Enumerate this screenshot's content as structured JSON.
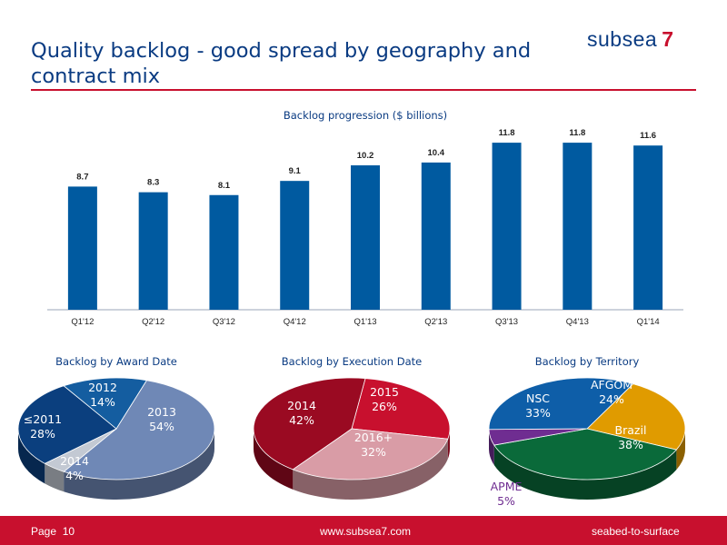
{
  "slide": {
    "title": "Quality backlog - good spread by geography and contract mix",
    "logo_name": "subsea",
    "logo_number": "7",
    "footer": {
      "page_label": "Page",
      "page_number": "10",
      "url": "www.subsea7.com",
      "tagline": "seabed-to-surface"
    }
  },
  "colors": {
    "bar": "#005aa0",
    "accent_red": "#c8102e",
    "title_blue": "#0a3b82"
  },
  "chart_data": [
    {
      "type": "bar",
      "title": "Backlog progression ($ billions)",
      "categories": [
        "Q1'12",
        "Q2'12",
        "Q3'12",
        "Q4'12",
        "Q1'13",
        "Q2'13",
        "Q3'13",
        "Q4'13",
        "Q1'14"
      ],
      "values": [
        8.7,
        8.3,
        8.1,
        9.1,
        10.2,
        10.4,
        11.8,
        11.8,
        11.6
      ],
      "data_labels": [
        "8.7",
        "8.3",
        "8.1",
        "9.1",
        "10.2",
        "10.4",
        "11.8",
        "11.8",
        "11.6"
      ],
      "ylim": [
        0,
        12.5
      ],
      "grid": false
    },
    {
      "type": "pie",
      "title": "Backlog by Award Date",
      "slices": [
        {
          "label": "2013",
          "value": 54,
          "text": "54%",
          "color": "#6f88b6"
        },
        {
          "label": "2014",
          "value": 4,
          "text": "4%",
          "color": "#c3c9d3"
        },
        {
          "label": "≤2011",
          "value": 28,
          "text": "28%",
          "color": "#0b3f7e"
        },
        {
          "label": "2012",
          "value": 14,
          "text": "14%",
          "color": "#145da0"
        }
      ]
    },
    {
      "type": "pie",
      "title": "Backlog by Execution Date",
      "slices": [
        {
          "label": "2015",
          "value": 26,
          "text": "26%",
          "color": "#c8102e"
        },
        {
          "label": "2016+",
          "value": 32,
          "text": "32%",
          "color": "#d99ca6"
        },
        {
          "label": "2014",
          "value": 42,
          "text": "42%",
          "color": "#9a0a22"
        }
      ]
    },
    {
      "type": "pie",
      "title": "Backlog by Territory",
      "slices": [
        {
          "label": "AFGOM",
          "value": 24,
          "text": "24%",
          "color": "#e09b00"
        },
        {
          "label": "Brazil",
          "value": 38,
          "text": "38%",
          "color": "#0a6a3a"
        },
        {
          "label": "APME",
          "value": 5,
          "text": "5%",
          "color": "#6f2d91"
        },
        {
          "label": "NSC",
          "value": 33,
          "text": "33%",
          "color": "#0e5ea8"
        }
      ]
    }
  ]
}
